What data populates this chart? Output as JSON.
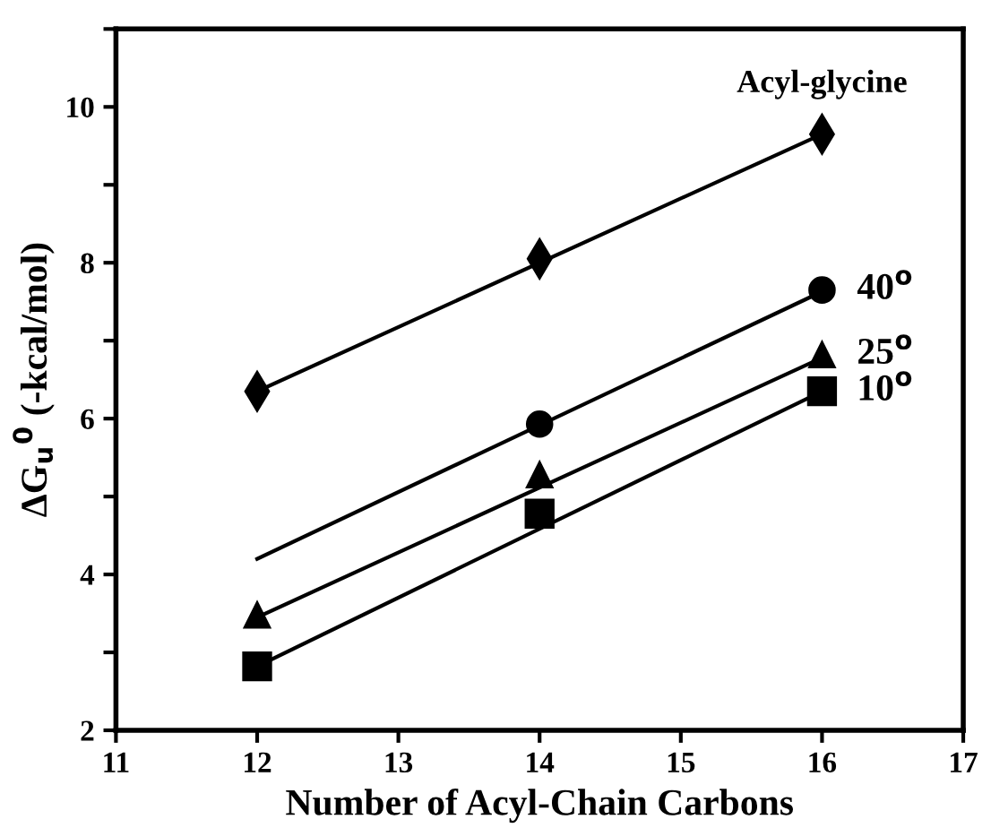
{
  "chart_data": {
    "type": "scatter",
    "xlabel": "Number of Acyl-Chain Carbons",
    "ylabel": "ΔG$_{u}$$^{0}$ (-kcal/mol)",
    "xlim": [
      11,
      17
    ],
    "xticks": [
      11,
      12,
      13,
      14,
      15,
      16,
      17
    ],
    "ylim": [
      2,
      11
    ],
    "yticks": [
      2,
      {
        "value": 3,
        "label": null
      },
      4,
      {
        "value": 5,
        "label": null
      },
      6,
      {
        "value": 7,
        "label": null
      },
      8,
      {
        "value": 9,
        "label": null
      },
      10,
      {
        "value": 11,
        "label": null
      }
    ],
    "grid": false,
    "legend": false,
    "series": [
      {
        "name": "Acyl-glycine",
        "marker": "diamond",
        "color": "#000000",
        "x": [
          12,
          14,
          16
        ],
        "values": [
          6.35,
          8.05,
          9.65
        ]
      },
      {
        "name": "40$^{o}$",
        "marker": "circle",
        "color": "#000000",
        "x": [
          14,
          16
        ],
        "values": [
          5.93,
          7.65
        ]
      },
      {
        "name": "25$^{o}$",
        "marker": "triangle",
        "color": "#000000",
        "x": [
          12,
          14,
          16
        ],
        "values": [
          3.48,
          5.28,
          6.82
        ]
      },
      {
        "name": "10$^{o}$",
        "marker": "square",
        "color": "#000000",
        "x": [
          12,
          14,
          16
        ],
        "values": [
          2.82,
          4.78,
          6.35
        ]
      },
      {
        "type": "line",
        "marker": "none",
        "line_style": "solid",
        "color": "#000000",
        "x": [
          12,
          16
        ],
        "values": [
          6.35,
          9.65
        ]
      },
      {
        "type": "line",
        "marker": "none",
        "line_style": "solid",
        "color": "#000000",
        "x": [
          12,
          16
        ],
        "values": [
          4.2,
          7.63
        ]
      },
      {
        "type": "line",
        "marker": "none",
        "line_style": "solid",
        "color": "#000000",
        "x": [
          12,
          16
        ],
        "values": [
          3.45,
          6.78
        ]
      },
      {
        "type": "line",
        "marker": "none",
        "line_style": "solid",
        "color": "#000000",
        "x": [
          12,
          16
        ],
        "values": [
          2.82,
          6.35
        ]
      }
    ]
  }
}
